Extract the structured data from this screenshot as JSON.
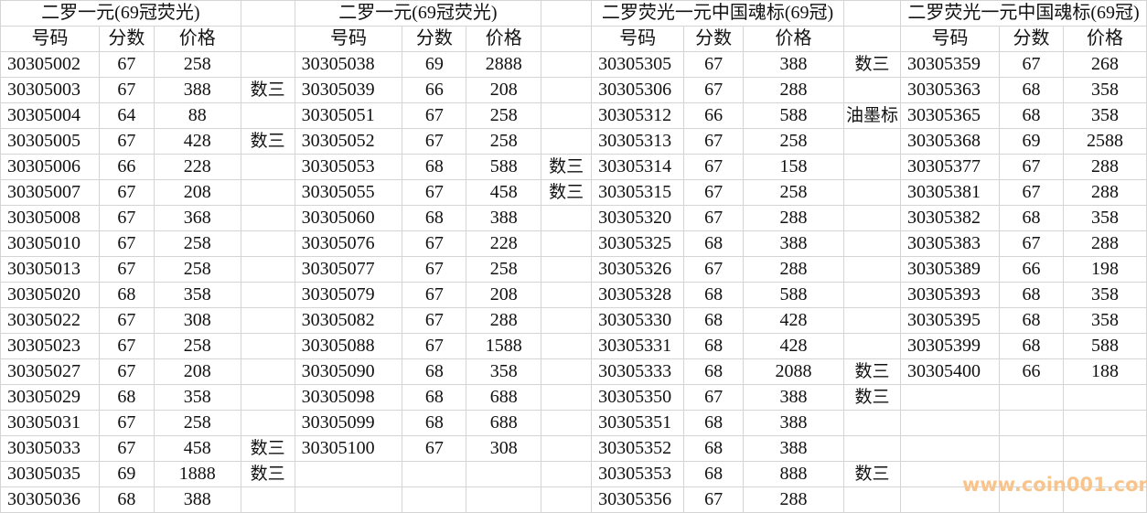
{
  "headers": {
    "code": "号码",
    "score": "分数",
    "price": "价格"
  },
  "blocks": [
    {
      "title": "二罗一元(69冠荧光)",
      "rows": [
        [
          "30305002",
          "67",
          "258"
        ],
        [
          "30305003",
          "67",
          "388"
        ],
        [
          "30305004",
          "64",
          "88"
        ],
        [
          "30305005",
          "67",
          "428"
        ],
        [
          "30305006",
          "66",
          "228"
        ],
        [
          "30305007",
          "67",
          "208"
        ],
        [
          "30305008",
          "67",
          "368"
        ],
        [
          "30305010",
          "67",
          "258"
        ],
        [
          "30305013",
          "67",
          "258"
        ],
        [
          "30305020",
          "68",
          "358"
        ],
        [
          "30305022",
          "67",
          "308"
        ],
        [
          "30305023",
          "67",
          "258"
        ],
        [
          "30305027",
          "67",
          "208"
        ],
        [
          "30305029",
          "68",
          "358"
        ],
        [
          "30305031",
          "67",
          "258"
        ],
        [
          "30305033",
          "67",
          "458"
        ],
        [
          "30305035",
          "69",
          "1888"
        ],
        [
          "30305036",
          "68",
          "388"
        ]
      ],
      "notes": [
        "",
        "数三",
        "",
        "数三",
        "",
        "",
        "",
        "",
        "",
        "",
        "",
        "",
        "",
        "",
        "",
        "数三",
        "数三",
        ""
      ]
    },
    {
      "title": "二罗一元(69冠荧光)",
      "rows": [
        [
          "30305038",
          "69",
          "2888"
        ],
        [
          "30305039",
          "66",
          "208"
        ],
        [
          "30305051",
          "67",
          "258"
        ],
        [
          "30305052",
          "67",
          "258"
        ],
        [
          "30305053",
          "68",
          "588"
        ],
        [
          "30305055",
          "67",
          "458"
        ],
        [
          "30305060",
          "68",
          "388"
        ],
        [
          "30305076",
          "67",
          "228"
        ],
        [
          "30305077",
          "67",
          "258"
        ],
        [
          "30305079",
          "67",
          "208"
        ],
        [
          "30305082",
          "67",
          "288"
        ],
        [
          "30305088",
          "67",
          "1588"
        ],
        [
          "30305090",
          "68",
          "358"
        ],
        [
          "30305098",
          "68",
          "688"
        ],
        [
          "30305099",
          "68",
          "688"
        ],
        [
          "30305100",
          "67",
          "308"
        ],
        [
          "",
          "",
          ""
        ],
        [
          "",
          "",
          ""
        ]
      ],
      "notes": [
        "",
        "",
        "",
        "",
        "数三",
        "数三",
        "",
        "",
        "",
        "",
        "",
        "",
        "",
        "",
        "",
        "",
        "",
        ""
      ]
    },
    {
      "title": "二罗荧光一元中国魂标(69冠)",
      "rows": [
        [
          "30305305",
          "67",
          "388"
        ],
        [
          "30305306",
          "67",
          "288"
        ],
        [
          "30305312",
          "66",
          "588"
        ],
        [
          "30305313",
          "67",
          "258"
        ],
        [
          "30305314",
          "67",
          "158"
        ],
        [
          "30305315",
          "67",
          "258"
        ],
        [
          "30305320",
          "67",
          "288"
        ],
        [
          "30305325",
          "68",
          "388"
        ],
        [
          "30305326",
          "67",
          "288"
        ],
        [
          "30305328",
          "68",
          "588"
        ],
        [
          "30305330",
          "68",
          "428"
        ],
        [
          "30305331",
          "68",
          "428"
        ],
        [
          "30305333",
          "68",
          "2088"
        ],
        [
          "30305350",
          "67",
          "388"
        ],
        [
          "30305351",
          "68",
          "388"
        ],
        [
          "30305352",
          "68",
          "388"
        ],
        [
          "30305353",
          "68",
          "888"
        ],
        [
          "30305356",
          "67",
          "288"
        ]
      ],
      "notes": [
        "数三",
        "",
        "油墨标",
        "",
        "",
        "",
        "",
        "",
        "",
        "",
        "",
        "",
        "数三",
        "数三",
        "",
        "",
        "数三",
        ""
      ]
    },
    {
      "title": "二罗荧光一元中国魂标(69冠)",
      "rows": [
        [
          "30305359",
          "67",
          "268"
        ],
        [
          "30305363",
          "68",
          "358"
        ],
        [
          "30305365",
          "68",
          "358"
        ],
        [
          "30305368",
          "69",
          "2588"
        ],
        [
          "30305377",
          "67",
          "288"
        ],
        [
          "30305381",
          "67",
          "288"
        ],
        [
          "30305382",
          "68",
          "358"
        ],
        [
          "30305383",
          "67",
          "288"
        ],
        [
          "30305389",
          "66",
          "198"
        ],
        [
          "30305393",
          "68",
          "358"
        ],
        [
          "30305395",
          "68",
          "358"
        ],
        [
          "30305399",
          "68",
          "588"
        ],
        [
          "30305400",
          "66",
          "188"
        ],
        [
          "",
          "",
          ""
        ],
        [
          "",
          "",
          ""
        ],
        [
          "",
          "",
          ""
        ],
        [
          "",
          "",
          ""
        ],
        [
          "",
          "",
          ""
        ]
      ]
    }
  ],
  "watermark": "www.coin001.com"
}
